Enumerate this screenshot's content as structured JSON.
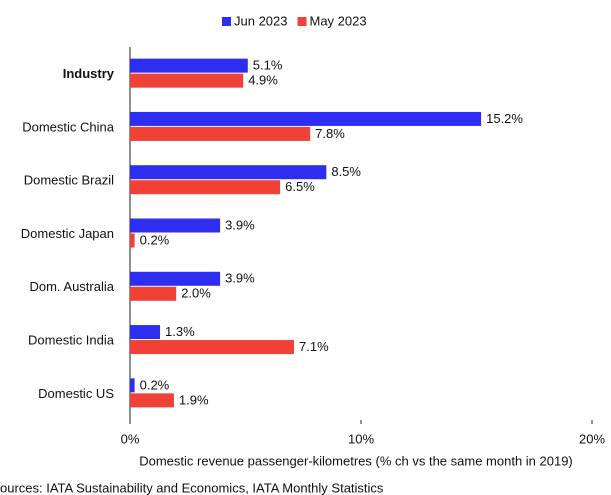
{
  "chart_data": {
    "type": "hbar",
    "categories": [
      "Industry",
      "Domestic China",
      "Domestic Brazil",
      "Domestic Japan",
      "Dom. Australia",
      "Domestic India",
      "Domestic US"
    ],
    "series": [
      {
        "name": "Jun 2023",
        "color": "#2e2ef0",
        "values": [
          5.1,
          15.2,
          8.5,
          3.9,
          3.9,
          1.3,
          0.2
        ],
        "value_labels": [
          "5.1%",
          "15.2%",
          "8.5%",
          "3.9%",
          "3.9%",
          "1.3%",
          "0.2%"
        ]
      },
      {
        "name": "May 2023",
        "color": "#ef4136",
        "values": [
          4.9,
          7.8,
          6.5,
          0.2,
          2.0,
          7.1,
          1.9
        ],
        "value_labels": [
          "4.9%",
          "7.8%",
          "6.5%",
          "0.2%",
          "2.0%",
          "7.1%",
          "1.9%"
        ]
      }
    ],
    "xlim": [
      0,
      20
    ],
    "xticks": [
      {
        "value": 0,
        "label": "0%"
      },
      {
        "value": 10,
        "label": "10%"
      },
      {
        "value": 20,
        "label": "20%"
      }
    ],
    "xlabel": "Domestic revenue passenger-kilometres (% ch vs the same month in 2019)",
    "source": "ources: IATA Sustainability and Economics, IATA Monthly Statistics",
    "legend": "top"
  }
}
